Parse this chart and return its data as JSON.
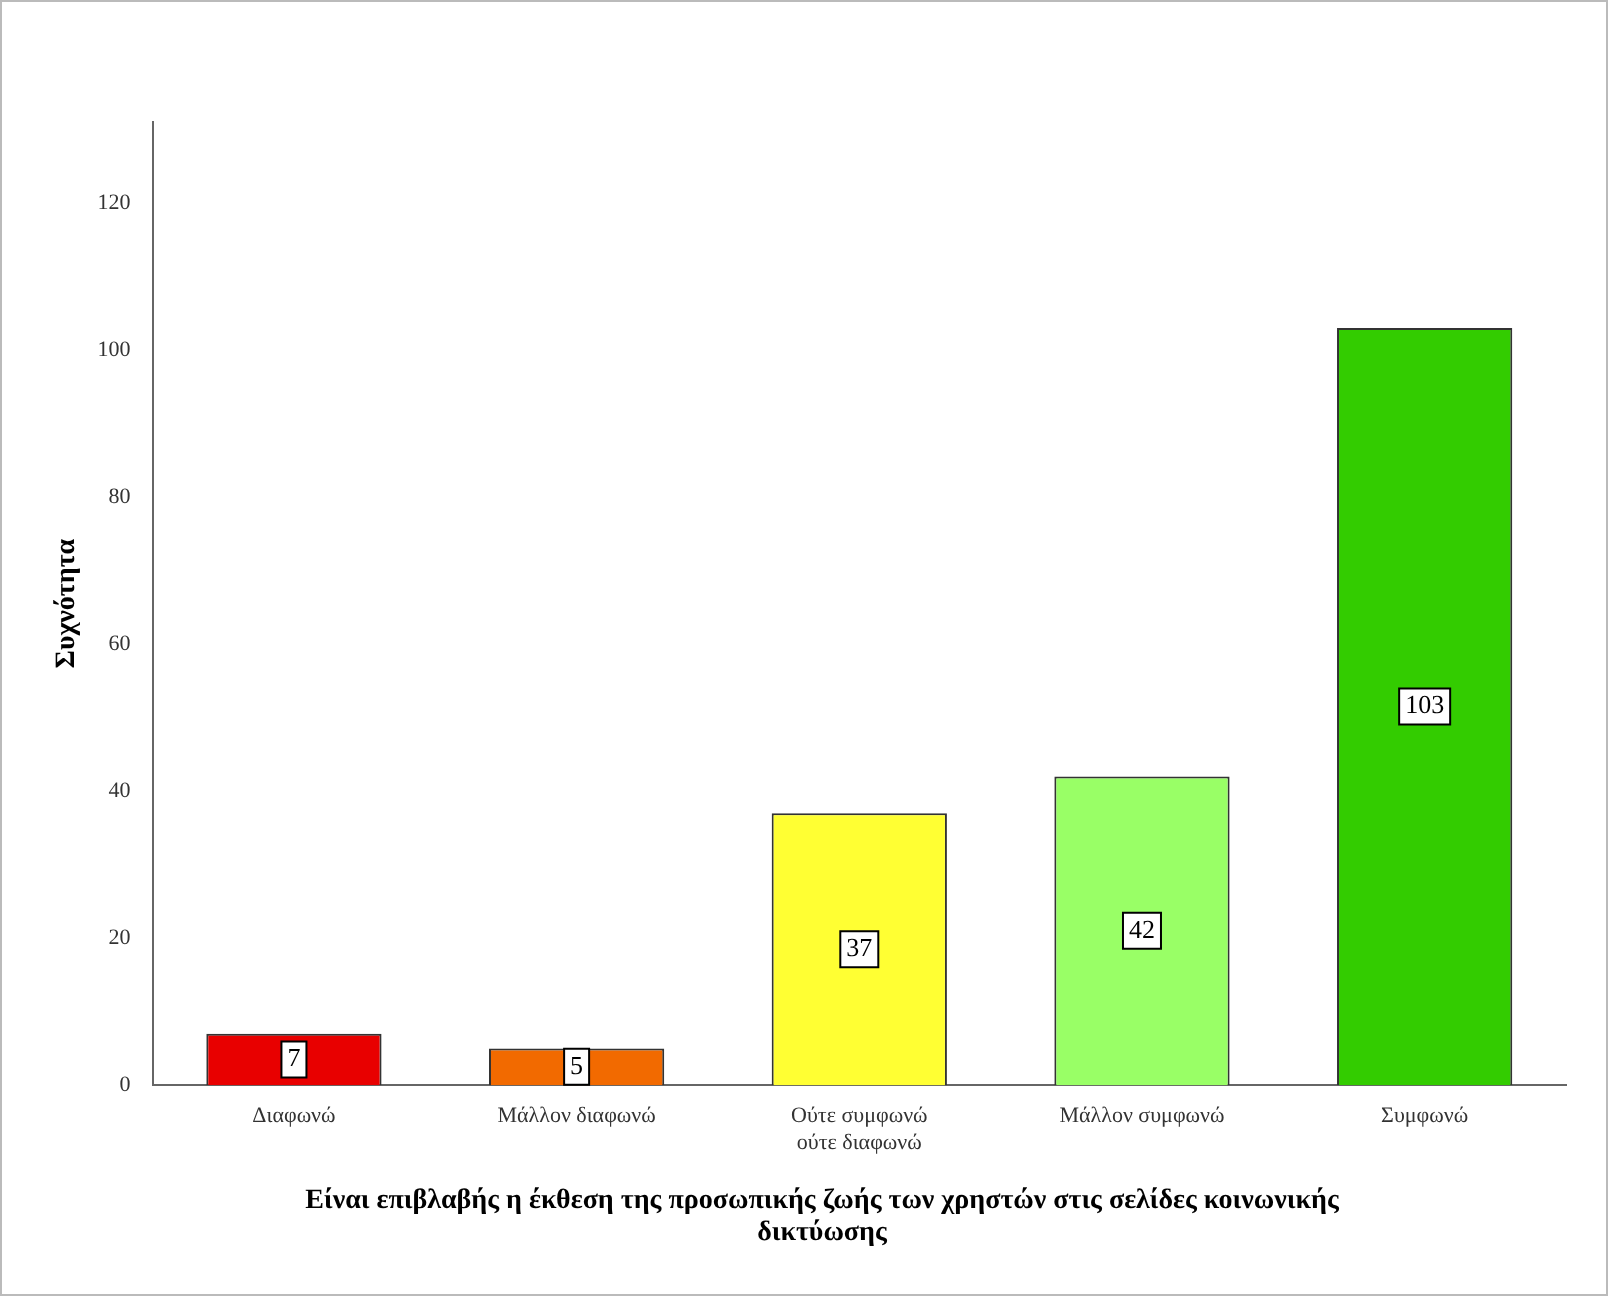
{
  "chart_data": {
    "type": "bar",
    "xlabel": "Είναι επιβλαβής η έκθεση της προσωπικής ζωής των χρηστών στις σελίδες κοινωνικής δικτύωσης",
    "ylabel": "Συχνότητα",
    "categories": [
      "Διαφωνώ",
      "Μάλλον διαφωνώ",
      "Ούτε συμφωνώ ούτε διαφωνώ",
      "Μάλλον συμφωνώ",
      "Συμφωνώ"
    ],
    "values": [
      7,
      5,
      37,
      42,
      103
    ],
    "colors": [
      "#e80000",
      "#f26a00",
      "#ffff33",
      "#99ff66",
      "#33cc00"
    ],
    "ylim": [
      0,
      131
    ],
    "yticks": [
      0,
      20,
      40,
      60,
      80,
      100,
      120
    ],
    "grid": false,
    "legend": false,
    "data_labels": true
  }
}
